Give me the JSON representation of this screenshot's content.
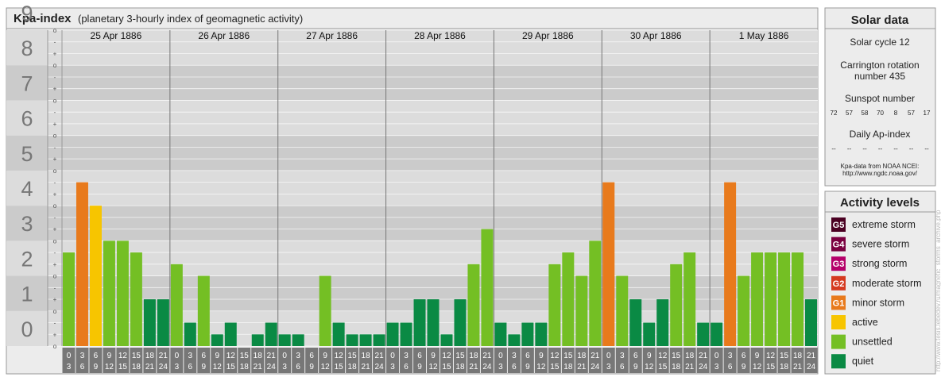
{
  "header": {
    "title": "Kpa-index",
    "subtitle": "(planetary 3-hourly index of geomagnetic activity)"
  },
  "chart_data": {
    "type": "bar",
    "title": "Kpa-index",
    "ylim": [
      0,
      9
    ],
    "y_ticks": [
      "0",
      "1",
      "2",
      "3",
      "4",
      "5",
      "6",
      "7",
      "8",
      "9"
    ],
    "minor_tick_labels": [
      "o",
      "+",
      "-"
    ],
    "days": [
      "25 Apr 1886",
      "26 Apr 1886",
      "27 Apr 1886",
      "28 Apr 1886",
      "29 Apr 1886",
      "30 Apr 1886",
      "1 May 1886"
    ],
    "x_tick_top": [
      "0",
      "3",
      "6",
      "9",
      "12",
      "15",
      "18",
      "21"
    ],
    "x_tick_bottom": [
      "3",
      "6",
      "9",
      "12",
      "15",
      "18",
      "21",
      "24"
    ],
    "values": [
      [
        2.667,
        4.667,
        4.0,
        3.0,
        3.0,
        2.667,
        1.333,
        1.333
      ],
      [
        2.333,
        0.667,
        2.0,
        0.333,
        0.667,
        0.0,
        0.333,
        0.667
      ],
      [
        0.333,
        0.333,
        0.0,
        2.0,
        0.667,
        0.333,
        0.333,
        0.333
      ],
      [
        0.667,
        0.667,
        1.333,
        1.333,
        0.333,
        1.333,
        2.333,
        3.333
      ],
      [
        0.667,
        0.333,
        0.667,
        0.667,
        2.333,
        2.667,
        2.0,
        3.0
      ],
      [
        4.667,
        2.0,
        1.333,
        0.667,
        1.333,
        2.333,
        2.667,
        0.667
      ],
      [
        0.667,
        4.667,
        2.0,
        2.667,
        2.667,
        2.667,
        2.667,
        1.333
      ]
    ]
  },
  "solar_panel": {
    "title": "Solar data",
    "solar_cycle": "Solar cycle 12",
    "carrington_line1": "Carrington rotation",
    "carrington_line2": "number 435",
    "sunspot_label": "Sunspot number",
    "sunspot_values": [
      "72",
      "57",
      "58",
      "70",
      "8",
      "57",
      "17"
    ],
    "ap_label": "Daily Ap-index",
    "ap_values": [
      "--",
      "--",
      "--",
      "--",
      "--",
      "--",
      "--"
    ],
    "source_line1": "Kpa-data from NOAA NCEI:",
    "source_line2": "http://www.ngdc.noaa.gov/"
  },
  "activity_panel": {
    "title": "Activity levels",
    "items": [
      {
        "badge": "G5",
        "label": "extreme storm",
        "color": "#4a0022"
      },
      {
        "badge": "G4",
        "label": "severe storm",
        "color": "#7a0040"
      },
      {
        "badge": "G3",
        "label": "strong storm",
        "color": "#b5006a"
      },
      {
        "badge": "G2",
        "label": "moderate storm",
        "color": "#d53a20"
      },
      {
        "badge": "G1",
        "label": "minor storm",
        "color": "#e87a1c"
      },
      {
        "badge": "",
        "label": "active",
        "color": "#f7c500"
      },
      {
        "badge": "",
        "label": "unsettled",
        "color": "#74bf24"
      },
      {
        "badge": "",
        "label": "quiet",
        "color": "#0a8a44"
      }
    ]
  },
  "watermark": "http://www.tesis.lebedev.ru/magnetic_storms_archive.php",
  "colors": {
    "quiet": "#0a8a44",
    "unsettled": "#74bf24",
    "active": "#f7c500",
    "minor": "#e87a1c"
  }
}
